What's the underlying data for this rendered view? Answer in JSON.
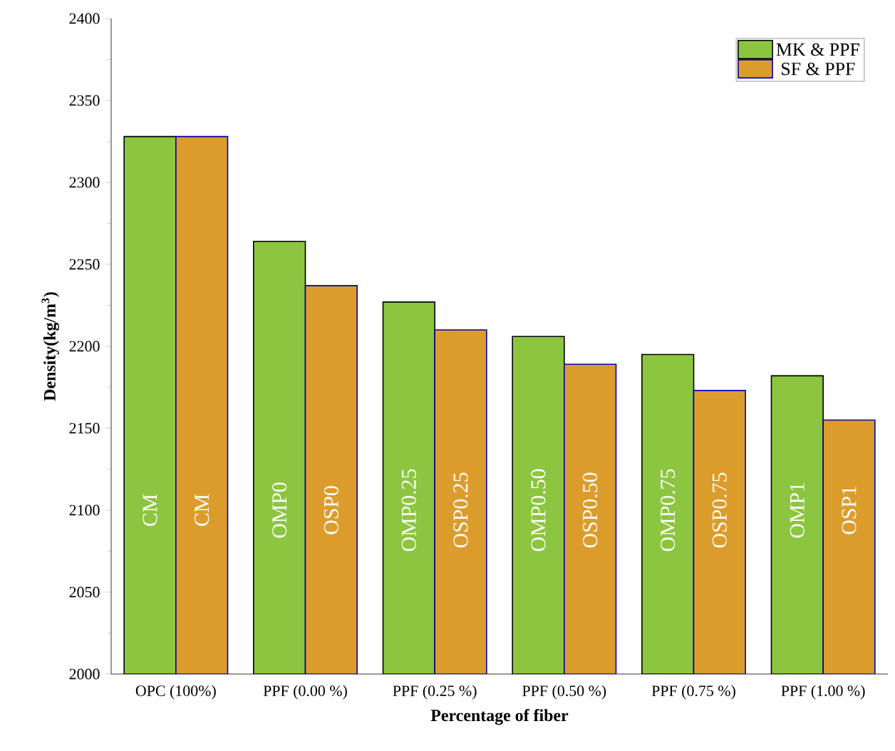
{
  "chart_data": {
    "type": "bar",
    "xlabel": "Percentage of fiber",
    "ylabel": "Density(kg/m$^{3}$)",
    "categories": [
      "OPC (100%)",
      "PPF (0.00 %)",
      "PPF (0.25 %)",
      "PPF (0.50 %)",
      "PPF (0.75 %)",
      "PPF (1.00 %)"
    ],
    "series": [
      {
        "name": "MK & PPF",
        "color": "#8cc540",
        "values": [
          2328,
          2264,
          2227,
          2206,
          2195,
          2182
        ]
      },
      {
        "name": "SF & PPF",
        "color": "#dc9c2c",
        "values": [
          2328,
          2237,
          2210,
          2189,
          2173,
          2155
        ]
      }
    ],
    "annotations": [
      "CM",
      "CM",
      "OMP0",
      "OSP0",
      "OMP0.25",
      "OSP0.25",
      "OMP0.50",
      "OSP0.50",
      "OMP0.75",
      "OSP0.75",
      "OMP1",
      "OSP1"
    ],
    "ylim": [
      2000,
      2400
    ],
    "yticks": [
      2000,
      2050,
      2100,
      2150,
      2200,
      2250,
      2300,
      2350,
      2400
    ],
    "grid": false,
    "legend": "top right"
  }
}
